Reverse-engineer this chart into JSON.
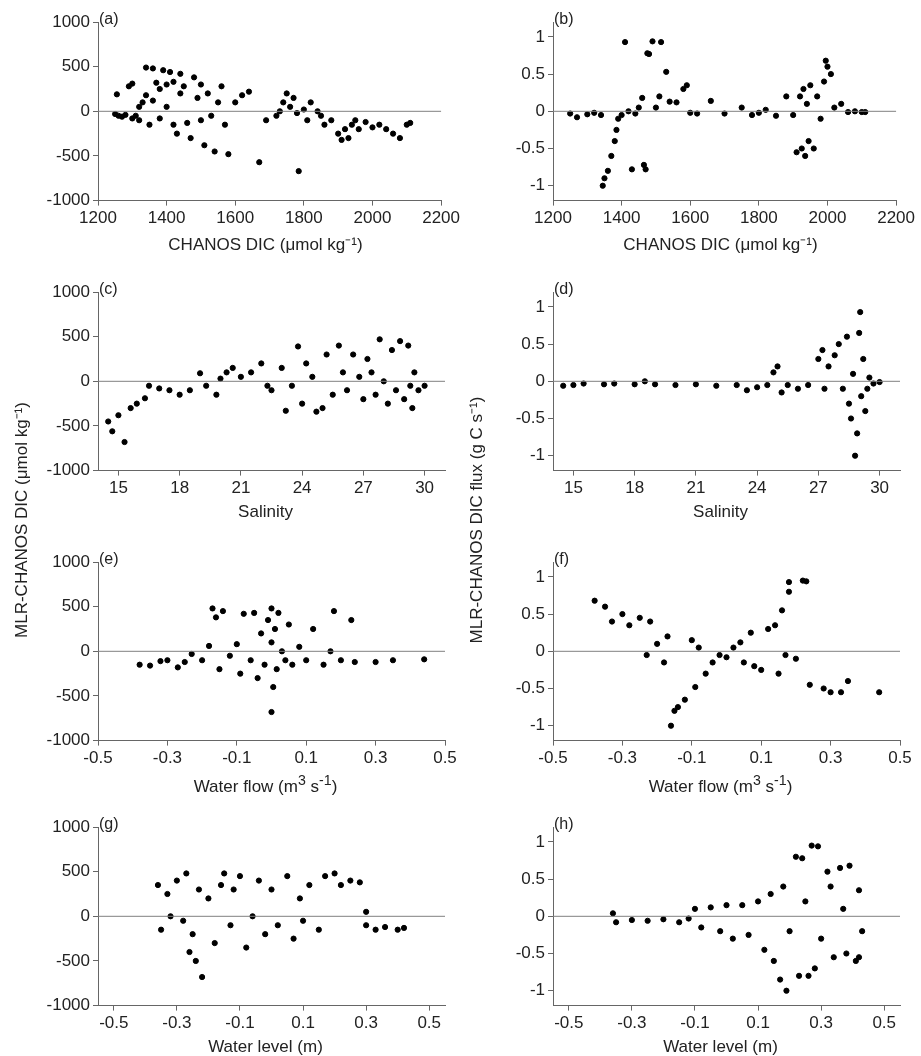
{
  "chart_data": [
    {
      "type": "scatter",
      "annotations": [
        "(a)"
      ],
      "xlabel": "CHANOS DIC (μmol kg⁻¹)",
      "color": "#000000",
      "marker": "circle",
      "grid": false,
      "xlim": [
        1200,
        2200
      ],
      "xticks": [
        1200,
        1400,
        1600,
        1800,
        2000,
        2200
      ],
      "ylim": [
        -1000,
        1000
      ],
      "yticks": [
        -1000,
        -500,
        0,
        500,
        1000
      ],
      "ref_lines": [
        {
          "axis": "y",
          "value": 0,
          "color": "#808080"
        }
      ],
      "x": [
        1250,
        1255,
        1260,
        1270,
        1280,
        1290,
        1300,
        1300,
        1310,
        1320,
        1320,
        1330,
        1340,
        1340,
        1350,
        1360,
        1360,
        1370,
        1380,
        1380,
        1390,
        1400,
        1400,
        1410,
        1420,
        1420,
        1430,
        1440,
        1440,
        1450,
        1460,
        1470,
        1480,
        1490,
        1500,
        1500,
        1510,
        1520,
        1530,
        1540,
        1550,
        1560,
        1570,
        1580,
        1600,
        1620,
        1640,
        1670,
        1690,
        1720,
        1730,
        1740,
        1750,
        1760,
        1770,
        1780,
        1785,
        1800,
        1810,
        1820,
        1840,
        1850,
        1860,
        1880,
        1900,
        1910,
        1920,
        1930,
        1940,
        1950,
        1960,
        1980,
        2000,
        2020,
        2040,
        2060,
        2080,
        2100,
        2110
      ],
      "values": [
        -30,
        190,
        -50,
        -60,
        -40,
        280,
        310,
        -80,
        -50,
        50,
        -100,
        100,
        490,
        180,
        -150,
        120,
        480,
        320,
        250,
        -80,
        460,
        300,
        50,
        440,
        330,
        -150,
        -250,
        200,
        420,
        280,
        -130,
        -300,
        380,
        150,
        300,
        -100,
        -380,
        200,
        -50,
        -450,
        100,
        280,
        -150,
        -480,
        100,
        180,
        220,
        -570,
        -100,
        -50,
        0,
        100,
        200,
        50,
        150,
        -20,
        -670,
        20,
        -100,
        100,
        0,
        -50,
        -150,
        -100,
        -250,
        -320,
        -200,
        -300,
        -150,
        -100,
        -200,
        -120,
        -180,
        -150,
        -200,
        -250,
        -300,
        -150,
        -130
      ]
    },
    {
      "type": "scatter",
      "annotations": [
        "(b)"
      ],
      "xlabel": "CHANOS DIC (μmol kg⁻¹)",
      "color": "#000000",
      "marker": "circle",
      "grid": false,
      "xlim": [
        1200,
        2200
      ],
      "xticks": [
        1200,
        1400,
        1600,
        1800,
        2000,
        2200
      ],
      "ylim": [
        -1.2,
        1.2
      ],
      "yticks": [
        -1,
        -0.5,
        0,
        0.5,
        1
      ],
      "ref_lines": [
        {
          "axis": "y",
          "value": 0,
          "color": "#808080"
        }
      ],
      "x": [
        1250,
        1270,
        1300,
        1320,
        1340,
        1345,
        1350,
        1360,
        1370,
        1380,
        1385,
        1390,
        1400,
        1410,
        1420,
        1430,
        1440,
        1450,
        1460,
        1465,
        1470,
        1475,
        1480,
        1490,
        1500,
        1510,
        1515,
        1530,
        1540,
        1560,
        1580,
        1590,
        1600,
        1620,
        1660,
        1700,
        1750,
        1780,
        1800,
        1820,
        1850,
        1880,
        1900,
        1910,
        1920,
        1925,
        1930,
        1935,
        1940,
        1945,
        1950,
        1960,
        1970,
        1980,
        1990,
        1995,
        2000,
        2010,
        2020,
        2040,
        2060,
        2080,
        2100,
        2110
      ],
      "values": [
        -0.03,
        -0.08,
        -0.04,
        -0.02,
        -0.05,
        -1.0,
        -0.9,
        -0.8,
        -0.6,
        -0.4,
        -0.25,
        -0.1,
        -0.05,
        0.93,
        0,
        -0.78,
        -0.03,
        0.05,
        0.18,
        -0.72,
        -0.78,
        0.78,
        0.77,
        0.94,
        0.05,
        0.2,
        0.93,
        0.53,
        0.13,
        0.12,
        0.3,
        0.35,
        -0.02,
        -0.03,
        0.14,
        -0.03,
        0.05,
        -0.05,
        -0.02,
        0.02,
        -0.06,
        0.2,
        -0.05,
        -0.55,
        0.2,
        -0.5,
        0.3,
        -0.6,
        0.1,
        -0.4,
        0.35,
        -0.5,
        0.2,
        -0.1,
        0.4,
        0.68,
        0.6,
        0.5,
        0.05,
        0.1,
        -0.01,
        0,
        -0.01,
        -0.01
      ]
    },
    {
      "type": "scatter",
      "annotations": [
        "(c)"
      ],
      "xlabel": "Salinity",
      "ylabel": "MLR-CHANOS DIC (μmol kg⁻¹)",
      "color": "#000000",
      "marker": "circle",
      "grid": false,
      "xlim": [
        14,
        31
      ],
      "xticks": [
        15,
        18,
        21,
        24,
        27,
        30
      ],
      "ylim": [
        -1000,
        1000
      ],
      "yticks": [
        -1000,
        -500,
        0,
        500,
        1000
      ],
      "ref_lines": [
        {
          "axis": "y",
          "value": 0,
          "color": "#808080"
        }
      ],
      "x": [
        14.5,
        14.7,
        15.0,
        15.3,
        15.6,
        15.9,
        16.3,
        16.5,
        17,
        17.5,
        18,
        18.5,
        19,
        19.3,
        19.8,
        20,
        20.3,
        20.6,
        21,
        21.5,
        22,
        22.3,
        22.5,
        23,
        23.2,
        23.5,
        23.8,
        24,
        24.2,
        24.5,
        24.7,
        25,
        25.2,
        25.5,
        25.8,
        26,
        26.2,
        26.5,
        26.8,
        27,
        27.2,
        27.4,
        27.6,
        27.8,
        28,
        28.2,
        28.4,
        28.6,
        28.8,
        29,
        29.2,
        29.3,
        29.4,
        29.5,
        29.7,
        30
      ],
      "values": [
        -450,
        -560,
        -380,
        -680,
        -300,
        -250,
        -190,
        -50,
        -80,
        -100,
        -150,
        -100,
        90,
        -50,
        -150,
        30,
        100,
        150,
        50,
        100,
        200,
        -50,
        -100,
        150,
        -330,
        -50,
        390,
        -250,
        200,
        50,
        -340,
        -300,
        300,
        -150,
        400,
        100,
        -100,
        300,
        50,
        -200,
        250,
        100,
        -150,
        470,
        0,
        -250,
        350,
        -100,
        450,
        -200,
        400,
        -50,
        -300,
        100,
        -100,
        -50
      ]
    },
    {
      "type": "scatter",
      "annotations": [
        "(d)"
      ],
      "xlabel": "Salinity",
      "ylabel": "MLR-CHANOS DIC flux (g C s⁻¹)",
      "color": "#000000",
      "marker": "circle",
      "grid": false,
      "xlim": [
        14,
        31
      ],
      "xticks": [
        15,
        18,
        21,
        24,
        27,
        30
      ],
      "ylim": [
        -1.2,
        1.2
      ],
      "yticks": [
        -1,
        -0.5,
        0,
        0.5,
        1
      ],
      "ref_lines": [
        {
          "axis": "y",
          "value": 0,
          "color": "#808080"
        }
      ],
      "x": [
        14.5,
        15,
        15.5,
        16.5,
        17,
        18,
        18.5,
        19,
        20,
        21,
        22,
        23,
        23.5,
        24,
        24.5,
        24.8,
        25,
        25.2,
        25.5,
        26,
        26.5,
        27,
        27.2,
        27.3,
        27.5,
        27.8,
        28,
        28.2,
        28.4,
        28.5,
        28.6,
        28.7,
        28.8,
        28.9,
        29,
        29.05,
        29.1,
        29.2,
        29.3,
        29.4,
        29.5,
        29.7,
        30
      ],
      "values": [
        -0.06,
        -0.05,
        -0.03,
        -0.04,
        -0.03,
        -0.04,
        0,
        -0.04,
        -0.05,
        -0.04,
        -0.06,
        -0.05,
        -0.12,
        -0.08,
        -0.05,
        0.12,
        0.2,
        -0.15,
        -0.05,
        -0.1,
        -0.05,
        0.3,
        0.42,
        -0.1,
        0.2,
        0.35,
        0.5,
        -0.1,
        0.6,
        -0.3,
        -0.5,
        0.1,
        -1.0,
        -0.7,
        0.65,
        0.93,
        -0.2,
        0.3,
        -0.4,
        -0.1,
        0.05,
        -0.03,
        -0.01
      ]
    },
    {
      "type": "scatter",
      "annotations": [
        "(e)"
      ],
      "xlabel": "Water flow (m$^{3}$ s$^{-1}$)",
      "color": "#000000",
      "marker": "circle",
      "grid": false,
      "xlim": [
        -0.5,
        0.5
      ],
      "xticks": [
        -0.5,
        -0.3,
        -0.1,
        0.1,
        0.3,
        0.5
      ],
      "ylim": [
        -1000,
        1000
      ],
      "yticks": [
        -1000,
        -500,
        0,
        500,
        1000
      ],
      "ref_lines": [
        {
          "axis": "y",
          "value": 0,
          "color": "#808080"
        }
      ],
      "x": [
        -0.38,
        -0.35,
        -0.32,
        -0.3,
        -0.27,
        -0.25,
        -0.23,
        -0.2,
        -0.18,
        -0.17,
        -0.16,
        -0.15,
        -0.14,
        -0.12,
        -0.1,
        -0.09,
        -0.08,
        -0.06,
        -0.05,
        -0.04,
        -0.03,
        -0.02,
        -0.01,
        0,
        0,
        0,
        0.005,
        0.01,
        0.015,
        0.02,
        0.03,
        0.04,
        0.05,
        0.06,
        0.08,
        0.1,
        0.12,
        0.15,
        0.17,
        0.18,
        0.2,
        0.23,
        0.24,
        0.3,
        0.35,
        0.44
      ],
      "values": [
        -150,
        -160,
        -110,
        -100,
        -180,
        -120,
        -30,
        -100,
        60,
        480,
        380,
        -200,
        450,
        -50,
        80,
        -250,
        420,
        -100,
        430,
        -300,
        200,
        -150,
        350,
        480,
        -680,
        100,
        -400,
        250,
        -200,
        430,
        0,
        -100,
        300,
        -150,
        50,
        -100,
        250,
        -150,
        0,
        450,
        -100,
        350,
        -120,
        -120,
        -100,
        -90
      ]
    },
    {
      "type": "scatter",
      "annotations": [
        "(f)"
      ],
      "xlabel": "Water flow (m$^{3}$ s$^{-1}$)",
      "color": "#000000",
      "marker": "circle",
      "grid": false,
      "xlim": [
        -0.5,
        0.5
      ],
      "xticks": [
        -0.5,
        -0.3,
        -0.1,
        0.1,
        0.3,
        0.5
      ],
      "ylim": [
        -1.2,
        1.2
      ],
      "yticks": [
        -1,
        -0.5,
        0,
        0.5,
        1
      ],
      "ref_lines": [
        {
          "axis": "y",
          "value": 0,
          "color": "#808080"
        }
      ],
      "x": [
        -0.38,
        -0.35,
        -0.33,
        -0.3,
        -0.28,
        -0.25,
        -0.23,
        -0.22,
        -0.2,
        -0.18,
        -0.17,
        -0.16,
        -0.15,
        -0.14,
        -0.12,
        -0.1,
        -0.09,
        -0.08,
        -0.06,
        -0.04,
        -0.02,
        0,
        0.02,
        0.04,
        0.05,
        0.07,
        0.08,
        0.1,
        0.12,
        0.14,
        0.15,
        0.16,
        0.17,
        0.18,
        0.18,
        0.2,
        0.22,
        0.23,
        0.24,
        0.28,
        0.3,
        0.33,
        0.35,
        0.44
      ],
      "values": [
        0.68,
        0.6,
        0.4,
        0.5,
        0.35,
        0.45,
        -0.05,
        0.4,
        0.1,
        -0.15,
        0.2,
        -1.0,
        -0.8,
        -0.75,
        -0.65,
        0.15,
        -0.48,
        0.05,
        -0.3,
        -0.15,
        -0.05,
        -0.08,
        0.05,
        0.12,
        -0.15,
        0.25,
        -0.2,
        -0.25,
        0.3,
        0.35,
        -0.3,
        0.55,
        -0.05,
        0.8,
        0.93,
        -0.1,
        0.95,
        0.94,
        -0.45,
        -0.5,
        -0.55,
        -0.55,
        -0.4,
        -0.55
      ]
    },
    {
      "type": "scatter",
      "annotations": [
        "(g)"
      ],
      "xlabel": "Water level (m)",
      "color": "#000000",
      "marker": "circle",
      "grid": false,
      "xlim": [
        -0.55,
        0.55
      ],
      "xticks": [
        -0.5,
        -0.3,
        -0.1,
        0.1,
        0.3,
        0.5
      ],
      "ylim": [
        -1000,
        1000
      ],
      "yticks": [
        -1000,
        -500,
        0,
        500,
        1000
      ],
      "ref_lines": [
        {
          "axis": "y",
          "value": 0,
          "color": "#808080"
        }
      ],
      "x": [
        -0.36,
        -0.35,
        -0.33,
        -0.32,
        -0.3,
        -0.28,
        -0.27,
        -0.26,
        -0.25,
        -0.24,
        -0.23,
        -0.22,
        -0.2,
        -0.18,
        -0.16,
        -0.15,
        -0.13,
        -0.12,
        -0.1,
        -0.08,
        -0.06,
        -0.04,
        -0.02,
        0,
        0.02,
        0.05,
        0.07,
        0.09,
        0.1,
        0.12,
        0.15,
        0.17,
        0.2,
        0.22,
        0.25,
        0.28,
        0.3,
        0.3,
        0.33,
        0.36,
        0.4,
        0.42
      ],
      "values": [
        350,
        -150,
        250,
        0,
        400,
        -50,
        480,
        -400,
        -200,
        -500,
        300,
        -680,
        200,
        -300,
        350,
        480,
        -100,
        300,
        450,
        -350,
        0,
        400,
        -200,
        300,
        -100,
        450,
        -250,
        200,
        -50,
        350,
        -150,
        450,
        480,
        350,
        400,
        380,
        50,
        -100,
        -150,
        -120,
        -150,
        -130
      ]
    },
    {
      "type": "scatter",
      "annotations": [
        "(h)"
      ],
      "xlabel": "Water level (m)",
      "color": "#000000",
      "marker": "circle",
      "grid": false,
      "xlim": [
        -0.55,
        0.55
      ],
      "xticks": [
        -0.5,
        -0.3,
        -0.1,
        0.1,
        0.3,
        0.5
      ],
      "ylim": [
        -1.2,
        1.2
      ],
      "yticks": [
        -1,
        -0.5,
        0,
        0.5,
        1
      ],
      "ref_lines": [
        {
          "axis": "y",
          "value": 0,
          "color": "#808080"
        }
      ],
      "x": [
        -0.36,
        -0.35,
        -0.3,
        -0.25,
        -0.2,
        -0.15,
        -0.12,
        -0.1,
        -0.08,
        -0.05,
        -0.02,
        0,
        0.02,
        0.05,
        0.07,
        0.1,
        0.12,
        0.14,
        0.15,
        0.17,
        0.18,
        0.19,
        0.2,
        0.22,
        0.23,
        0.24,
        0.25,
        0.26,
        0.27,
        0.28,
        0.29,
        0.3,
        0.32,
        0.33,
        0.34,
        0.36,
        0.37,
        0.38,
        0.39,
        0.41,
        0.42,
        0.42,
        0.43
      ],
      "values": [
        0.04,
        -0.08,
        -0.05,
        -0.06,
        -0.04,
        -0.08,
        -0.03,
        0.1,
        -0.15,
        0.12,
        -0.2,
        0.15,
        -0.3,
        0.15,
        -0.25,
        0.2,
        -0.45,
        0.3,
        -0.6,
        -0.85,
        0.4,
        -1.0,
        -0.2,
        0.8,
        -0.8,
        0.78,
        0.2,
        -0.8,
        0.95,
        -0.7,
        0.94,
        -0.3,
        0.6,
        0.4,
        -0.55,
        0.65,
        0.1,
        -0.5,
        0.68,
        -0.6,
        0.35,
        -0.55,
        -0.2
      ]
    }
  ]
}
